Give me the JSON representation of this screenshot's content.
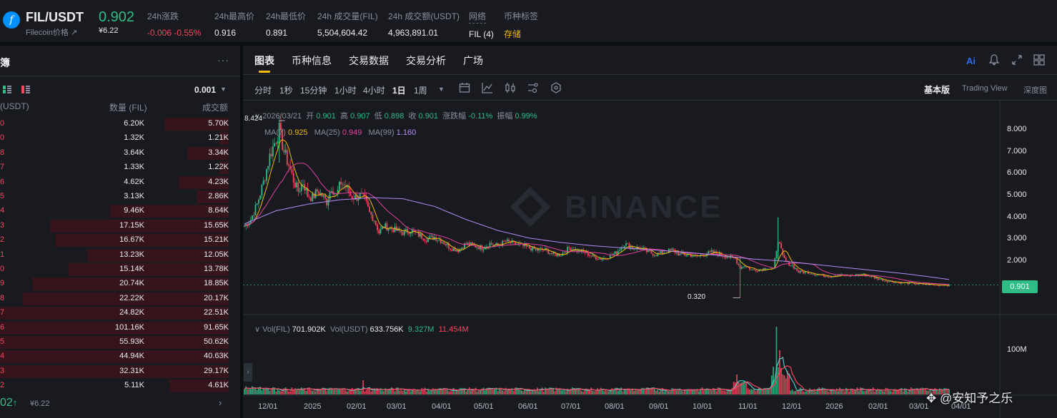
{
  "header": {
    "pair": "FIL/USDT",
    "coin_name": "Filecoin价格 ↗",
    "last_price": "0.902",
    "last_price_fiat": "¥6.22",
    "stats": [
      {
        "label": "24h涨跌",
        "value": "-0.006 -0.55%"
      },
      {
        "label": "24h最高价",
        "value": "0.916"
      },
      {
        "label": "24h最低价",
        "value": "0.891"
      },
      {
        "label": "24h 成交量(FIL)",
        "value": "5,504,604.42"
      },
      {
        "label": "24h 成交额(USDT)",
        "value": "4,963,891.01"
      },
      {
        "label": "网络",
        "value": "FIL (4)"
      },
      {
        "label": "币种标签",
        "value": "存储"
      }
    ]
  },
  "orderbook": {
    "title": "簿",
    "more": "···",
    "precision": "0.001",
    "col_price": "(USDT)",
    "col_qty": "数量 (FIL)",
    "col_total": "成交额",
    "rows": [
      {
        "p": "0",
        "q": "6.20K",
        "t": "5.70K",
        "d": 0.28
      },
      {
        "p": "0",
        "q": "1.32K",
        "t": "1.21K",
        "d": 0.04
      },
      {
        "p": "8",
        "q": "3.64K",
        "t": "3.34K",
        "d": 0.18
      },
      {
        "p": "7",
        "q": "1.33K",
        "t": "1.22K",
        "d": 0.04
      },
      {
        "p": "6",
        "q": "4.62K",
        "t": "4.23K",
        "d": 0.22
      },
      {
        "p": "5",
        "q": "3.13K",
        "t": "2.86K",
        "d": 0.14
      },
      {
        "p": "4",
        "q": "9.46K",
        "t": "8.64K",
        "d": 0.52
      },
      {
        "p": "3",
        "q": "17.15K",
        "t": "15.65K",
        "d": 0.78
      },
      {
        "p": "2",
        "q": "16.67K",
        "t": "15.21K",
        "d": 0.76
      },
      {
        "p": "1",
        "q": "13.23K",
        "t": "12.05K",
        "d": 0.62
      },
      {
        "p": "0",
        "q": "15.14K",
        "t": "13.78K",
        "d": 0.7
      },
      {
        "p": "9",
        "q": "20.74K",
        "t": "18.85K",
        "d": 0.86
      },
      {
        "p": "8",
        "q": "22.22K",
        "t": "20.17K",
        "d": 0.9
      },
      {
        "p": "7",
        "q": "24.82K",
        "t": "22.51K",
        "d": 1.0
      },
      {
        "p": "6",
        "q": "101.16K",
        "t": "91.65K",
        "d": 1.0
      },
      {
        "p": "5",
        "q": "55.93K",
        "t": "50.62K",
        "d": 1.0
      },
      {
        "p": "4",
        "q": "44.94K",
        "t": "40.63K",
        "d": 1.0
      },
      {
        "p": "3",
        "q": "32.31K",
        "t": "29.17K",
        "d": 1.0
      },
      {
        "p": "2",
        "q": "5.11K",
        "t": "4.61K",
        "d": 0.26
      }
    ],
    "mid_price": "02",
    "mid_arrow": "↑",
    "mid_fiat": "¥6.22",
    "footer_arrow": "›"
  },
  "chart": {
    "tabs": [
      "图表",
      "币种信息",
      "交易数据",
      "交易分析",
      "广场"
    ],
    "ai_label": "Ai",
    "timeframes": [
      "分时",
      "1秒",
      "15分钟",
      "1小时",
      "4小时",
      "1日",
      "1周"
    ],
    "active_timeframe": "1日",
    "views": [
      "基本版",
      "Trading View",
      "深度图"
    ],
    "ohlc": {
      "date": "2026/03/21",
      "open_label": "开",
      "open": "0.901",
      "high_label": "高",
      "high": "0.907",
      "low_label": "低",
      "low": "0.898",
      "close_label": "收",
      "close": "0.901",
      "chg_label": "涨跌幅",
      "chg": "-0.11%",
      "amp_label": "振幅",
      "amp": "0.99%"
    },
    "ma": {
      "ma7_label": "MA(7)",
      "ma7": "0.925",
      "ma25_label": "MA(25)",
      "ma25": "0.949",
      "ma99_label": "MA(99)",
      "ma99": "1.160"
    },
    "vol": {
      "fil_label": "Vol(FIL)",
      "fil": "701.902K",
      "usdt_label": "Vol(USDT)",
      "usdt": "633.756K",
      "ma5": "9.327M",
      "ma10": "11.454M"
    },
    "current_price": "0.901",
    "high_annot": "8.424",
    "low_annot": "0.320",
    "watermark": "BINANCE",
    "collapse": "›",
    "overlay_watermark": "✥ @安知予之乐"
  },
  "chart_data": {
    "type": "candlestick",
    "title": "",
    "y_ticks": [
      "8.000",
      "7.000",
      "6.000",
      "5.000",
      "4.000",
      "3.000",
      "2.000"
    ],
    "vol_ticks": [
      "100M"
    ],
    "x_ticks": [
      "12/01",
      "2025",
      "02/01",
      "03/01",
      "04/01",
      "05/01",
      "06/01",
      "07/01",
      "08/01",
      "09/01",
      "10/01",
      "11/01",
      "12/01",
      "2026",
      "02/01",
      "03/01",
      "04/01"
    ],
    "ylim": [
      0,
      8.8
    ],
    "close_series": [
      [
        0,
        3.6
      ],
      [
        4,
        3.9
      ],
      [
        8,
        4.6
      ],
      [
        12,
        5.6
      ],
      [
        16,
        6.8
      ],
      [
        20,
        7.6
      ],
      [
        22,
        8.0
      ],
      [
        25,
        7.0
      ],
      [
        28,
        6.4
      ],
      [
        31,
        5.7
      ],
      [
        34,
        5.2
      ],
      [
        37,
        5.6
      ],
      [
        40,
        5.0
      ],
      [
        43,
        4.9
      ],
      [
        46,
        5.2
      ],
      [
        49,
        5.0
      ],
      [
        52,
        4.7
      ],
      [
        55,
        5.4
      ],
      [
        58,
        5.0
      ],
      [
        61,
        5.6
      ],
      [
        64,
        5.4
      ],
      [
        67,
        5.0
      ],
      [
        70,
        4.9
      ],
      [
        73,
        5.0
      ],
      [
        76,
        4.8
      ],
      [
        79,
        4.2
      ],
      [
        82,
        3.9
      ],
      [
        85,
        3.3
      ],
      [
        88,
        3.6
      ],
      [
        92,
        3.5
      ],
      [
        96,
        3.4
      ],
      [
        100,
        3.3
      ],
      [
        105,
        3.4
      ],
      [
        110,
        3.2
      ],
      [
        115,
        3.0
      ],
      [
        120,
        3.1
      ],
      [
        125,
        2.9
      ],
      [
        130,
        2.6
      ],
      [
        135,
        2.5
      ],
      [
        140,
        2.8
      ],
      [
        145,
        2.7
      ],
      [
        150,
        2.6
      ],
      [
        155,
        2.8
      ],
      [
        160,
        2.7
      ],
      [
        165,
        2.9
      ],
      [
        170,
        2.8
      ],
      [
        175,
        2.7
      ],
      [
        180,
        2.6
      ],
      [
        185,
        2.5
      ],
      [
        190,
        2.5
      ],
      [
        195,
        2.3
      ],
      [
        200,
        2.3
      ],
      [
        205,
        2.6
      ],
      [
        210,
        2.5
      ],
      [
        215,
        2.4
      ],
      [
        220,
        2.2
      ],
      [
        225,
        2.1
      ],
      [
        230,
        2.2
      ],
      [
        235,
        2.4
      ],
      [
        240,
        2.8
      ],
      [
        245,
        2.6
      ],
      [
        250,
        2.6
      ],
      [
        255,
        2.4
      ],
      [
        260,
        2.3
      ],
      [
        265,
        2.4
      ],
      [
        270,
        2.5
      ],
      [
        275,
        2.3
      ],
      [
        280,
        2.3
      ],
      [
        285,
        2.2
      ],
      [
        290,
        2.3
      ],
      [
        295,
        2.4
      ],
      [
        300,
        2.3
      ],
      [
        305,
        2.2
      ],
      [
        310,
        2.1
      ],
      [
        313,
        1.7
      ],
      [
        316,
        1.8
      ],
      [
        320,
        1.6
      ],
      [
        325,
        1.6
      ],
      [
        330,
        1.7
      ],
      [
        334,
        1.6
      ],
      [
        337,
        3.0
      ],
      [
        340,
        2.2
      ],
      [
        343,
        1.9
      ],
      [
        346,
        1.8
      ],
      [
        350,
        1.5
      ],
      [
        355,
        1.5
      ],
      [
        360,
        1.4
      ],
      [
        365,
        1.35
      ],
      [
        370,
        1.3
      ],
      [
        375,
        1.4
      ],
      [
        380,
        1.3
      ],
      [
        385,
        1.35
      ],
      [
        390,
        1.4
      ],
      [
        395,
        1.3
      ],
      [
        400,
        1.2
      ],
      [
        405,
        1.1
      ],
      [
        410,
        1.05
      ],
      [
        415,
        1.0
      ],
      [
        420,
        1.0
      ],
      [
        425,
        0.95
      ],
      [
        430,
        0.95
      ],
      [
        435,
        0.9
      ],
      [
        440,
        0.92
      ],
      [
        445,
        0.9
      ]
    ],
    "ma99_series": [
      [
        0,
        3.7
      ],
      [
        20,
        4.3
      ],
      [
        40,
        4.6
      ],
      [
        60,
        4.8
      ],
      [
        80,
        4.9
      ],
      [
        100,
        4.85
      ],
      [
        120,
        4.5
      ],
      [
        140,
        3.9
      ],
      [
        160,
        3.4
      ],
      [
        180,
        3.05
      ],
      [
        200,
        2.85
      ],
      [
        220,
        2.7
      ],
      [
        240,
        2.6
      ],
      [
        260,
        2.5
      ],
      [
        280,
        2.4
      ],
      [
        300,
        2.25
      ],
      [
        320,
        2.1
      ],
      [
        340,
        2.0
      ],
      [
        360,
        1.85
      ],
      [
        380,
        1.7
      ],
      [
        400,
        1.55
      ],
      [
        420,
        1.4
      ],
      [
        445,
        1.16
      ]
    ]
  }
}
